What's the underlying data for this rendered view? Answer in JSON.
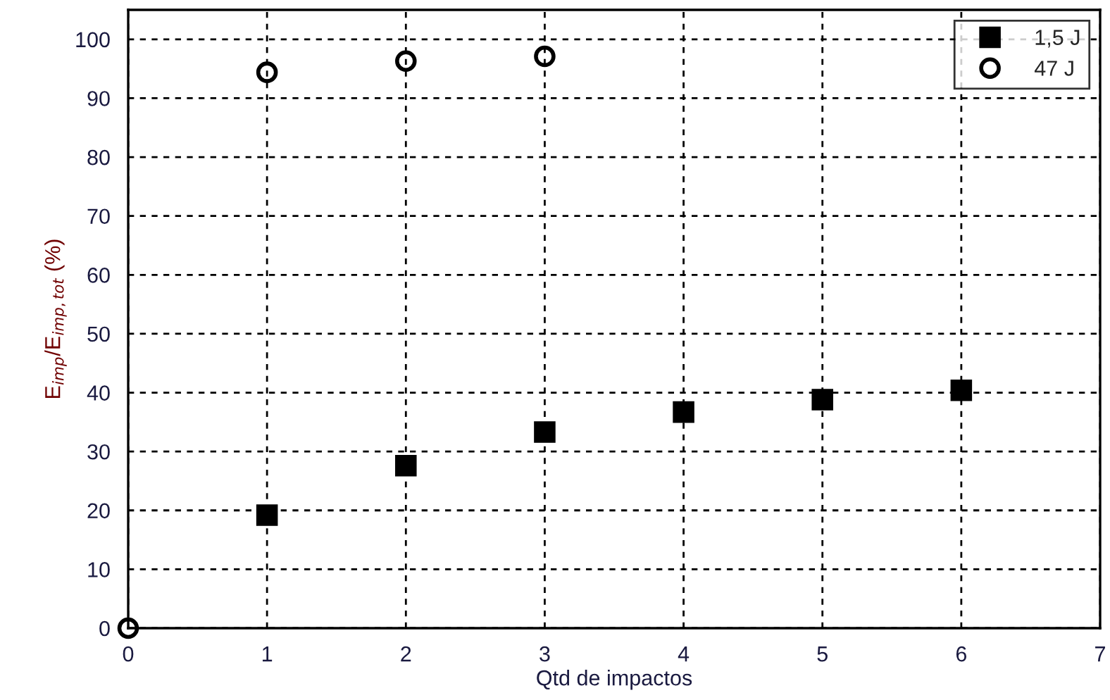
{
  "chart_data": {
    "type": "scatter",
    "xlabel": "Qtd de impactos",
    "ylabel": "E$_{imp}$/E$_{imp,tot}$ (%)",
    "series": [
      {
        "name": "1,5 J",
        "color": "#000000",
        "marker": "square",
        "x": [
          1,
          2,
          3,
          4,
          5,
          6
        ],
        "values": [
          19.2,
          27.6,
          33.3,
          36.7,
          38.8,
          40.4
        ]
      },
      {
        "name": "47 J",
        "color": "#000000",
        "marker": "circle",
        "x": [
          0,
          1,
          2,
          3
        ],
        "values": [
          0,
          94.4,
          96.3,
          97.1
        ]
      }
    ],
    "xlim": [
      0,
      7
    ],
    "ylim": [
      0,
      105
    ],
    "xticks": [
      0,
      1,
      2,
      3,
      4,
      5,
      6,
      7
    ],
    "yticks": [
      0,
      10,
      20,
      30,
      40,
      50,
      60,
      70,
      80,
      90,
      100
    ],
    "grid": true,
    "legend": "top right"
  }
}
